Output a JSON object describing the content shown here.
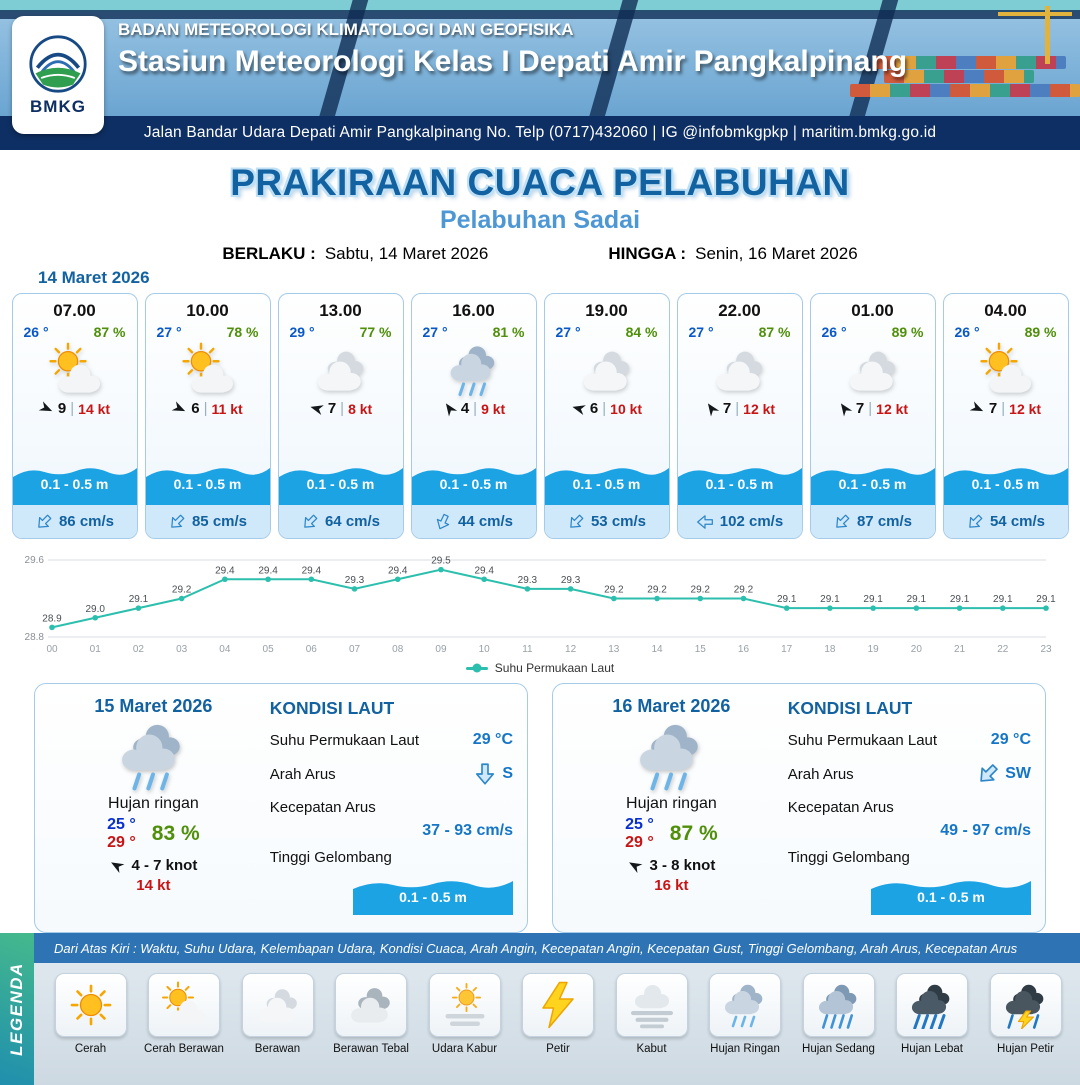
{
  "header": {
    "logo_text": "BMKG",
    "agency": "BADAN METEOROLOGI KLIMATOLOGI DAN GEOFISIKA",
    "station": "Stasiun Meteorologi Kelas I Depati Amir Pangkalpinang",
    "address": "Jalan Bandar Udara Depati Amir Pangkalpinang No. Telp (0717)432060 | IG @infobmkgpkp | maritim.bmkg.go.id"
  },
  "title": {
    "main": "PRAKIRAAN CUACA PELABUHAN",
    "subtitle": "Pelabuhan Sadai",
    "berlaku_label": "BERLAKU :",
    "berlaku_value": "Sabtu, 14 Maret 2026",
    "hingga_label": "HINGGA :",
    "hingga_value": "Senin, 16 Maret 2026"
  },
  "forecast": {
    "date": "14 Maret 2026",
    "sep": "|",
    "cards": [
      {
        "time": "07.00",
        "temp": "26 °",
        "rh": "87 %",
        "icon": "cerah-berawan",
        "wind_deg": 25,
        "wind_val": "9",
        "wind_kt": "14 kt",
        "wave": "0.1 - 0.5 m",
        "cur_deg": 135,
        "cur": "86 cm/s"
      },
      {
        "time": "10.00",
        "temp": "27 °",
        "rh": "78 %",
        "icon": "cerah-berawan",
        "wind_deg": 25,
        "wind_val": "6",
        "wind_kt": "11 kt",
        "wave": "0.1 - 0.5 m",
        "cur_deg": 135,
        "cur": "85 cm/s"
      },
      {
        "time": "13.00",
        "temp": "29 °",
        "rh": "77 %",
        "icon": "berawan",
        "wind_deg": 195,
        "wind_val": "7",
        "wind_kt": "8 kt",
        "wave": "0.1 - 0.5 m",
        "cur_deg": 135,
        "cur": "64 cm/s"
      },
      {
        "time": "16.00",
        "temp": "27 °",
        "rh": "81 %",
        "icon": "hujan-ringan",
        "wind_deg": 235,
        "wind_val": "4",
        "wind_kt": "9 kt",
        "wave": "0.1 - 0.5 m",
        "cur_deg": 115,
        "cur": "44 cm/s"
      },
      {
        "time": "19.00",
        "temp": "27 °",
        "rh": "84 %",
        "icon": "berawan",
        "wind_deg": 195,
        "wind_val": "6",
        "wind_kt": "10 kt",
        "wave": "0.1 - 0.5 m",
        "cur_deg": 135,
        "cur": "53 cm/s"
      },
      {
        "time": "22.00",
        "temp": "27 °",
        "rh": "87 %",
        "icon": "berawan",
        "wind_deg": 235,
        "wind_val": "7",
        "wind_kt": "12 kt",
        "wave": "0.1 - 0.5 m",
        "cur_deg": 180,
        "cur": "102 cm/s"
      },
      {
        "time": "01.00",
        "temp": "26 °",
        "rh": "89 %",
        "icon": "berawan",
        "wind_deg": 235,
        "wind_val": "7",
        "wind_kt": "12 kt",
        "wave": "0.1 - 0.5 m",
        "cur_deg": 135,
        "cur": "87 cm/s"
      },
      {
        "time": "04.00",
        "temp": "26 °",
        "rh": "89 %",
        "icon": "cerah-berawan",
        "wind_deg": 25,
        "wind_val": "7",
        "wind_kt": "12 kt",
        "wave": "0.1 - 0.5 m",
        "cur_deg": 135,
        "cur": "54 cm/s"
      }
    ]
  },
  "chart_data": {
    "type": "line",
    "title": "",
    "xlabel": "",
    "ylabel": "",
    "series_name": "Suhu Permukaan Laut",
    "x": [
      "00",
      "01",
      "02",
      "03",
      "04",
      "05",
      "06",
      "07",
      "08",
      "09",
      "10",
      "11",
      "12",
      "13",
      "14",
      "15",
      "16",
      "17",
      "18",
      "19",
      "20",
      "21",
      "22",
      "23"
    ],
    "values": [
      28.9,
      29.0,
      29.1,
      29.2,
      29.4,
      29.4,
      29.4,
      29.3,
      29.4,
      29.5,
      29.4,
      29.3,
      29.3,
      29.2,
      29.2,
      29.2,
      29.2,
      29.1,
      29.1,
      29.1,
      29.1,
      29.1,
      29.1,
      29.1
    ],
    "ylim": [
      28.8,
      29.6
    ],
    "line_color": "#2cbfae",
    "legend_position": "bottom",
    "grid": true
  },
  "summary": {
    "days": [
      {
        "date": "15 Maret 2026",
        "icon": "hujan-ringan",
        "weather": "Hujan ringan",
        "temp_min": "25 °",
        "temp_max": "29 °",
        "rh": "83 %",
        "wind_deg": 210,
        "wind_range": "4 - 7 knot",
        "gust": "14 kt",
        "sea_title": "KONDISI LAUT",
        "sst_label": "Suhu Permukaan Laut",
        "sst": "29 °C",
        "dir_label": "Arah Arus",
        "dir": "S",
        "dir_deg": 90,
        "speed_label": "Kecepatan Arus",
        "speed": "37 - 93 cm/s",
        "wave_label": "Tinggi Gelombang",
        "wave": "0.1 - 0.5 m"
      },
      {
        "date": "16 Maret 2026",
        "icon": "hujan-ringan",
        "weather": "Hujan ringan",
        "temp_min": "25 °",
        "temp_max": "29 °",
        "rh": "87 %",
        "wind_deg": 210,
        "wind_range": "3 - 8 knot",
        "gust": "16 kt",
        "sea_title": "KONDISI LAUT",
        "sst_label": "Suhu Permukaan Laut",
        "sst": "29 °C",
        "dir_label": "Arah Arus",
        "dir": "SW",
        "dir_deg": 135,
        "speed_label": "Kecepatan Arus",
        "speed": "49 - 97 cm/s",
        "wave_label": "Tinggi Gelombang",
        "wave": "0.1 - 0.5 m"
      }
    ]
  },
  "legend": {
    "caption": "Dari Atas Kiri : Waktu, Suhu Udara, Kelembapan Udara, Kondisi Cuaca, Arah Angin, Kecepatan Angin, Kecepatan Gust, Tinggi Gelombang, Arah Arus, Kecepatan Arus",
    "vertical_label": "LEGENDA",
    "items": [
      {
        "label": "Cerah",
        "icon": "cerah"
      },
      {
        "label": "Cerah Berawan",
        "icon": "cerah-berawan"
      },
      {
        "label": "Berawan",
        "icon": "berawan"
      },
      {
        "label": "Berawan Tebal",
        "icon": "berawan-tebal"
      },
      {
        "label": "Udara Kabur",
        "icon": "udara-kabur"
      },
      {
        "label": "Petir",
        "icon": "petir"
      },
      {
        "label": "Kabut",
        "icon": "kabut"
      },
      {
        "label": "Hujan Ringan",
        "icon": "hujan-ringan"
      },
      {
        "label": "Hujan Sedang",
        "icon": "hujan-sedang"
      },
      {
        "label": "Hujan Lebat",
        "icon": "hujan-lebat"
      },
      {
        "label": "Hujan Petir",
        "icon": "hujan-petir"
      }
    ]
  },
  "colors": {
    "primary_blue": "#1261a0",
    "subtitle_blue": "#4e97d5",
    "temp_blue": "#0a58c8",
    "humidity_green": "#4f8f0a",
    "alert_red": "#c81414",
    "wave_blue": "#1ca3e3",
    "current_bg": "#cfe9fa",
    "sst_line": "#2cbfae",
    "caption_bar": "#2e74b5",
    "header_navy": "#0e2f63"
  }
}
